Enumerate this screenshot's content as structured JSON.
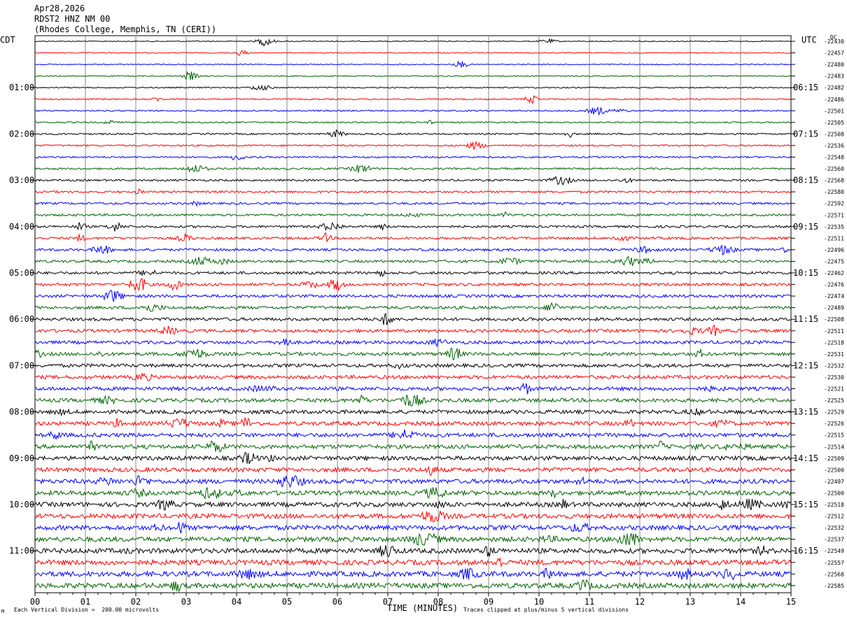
{
  "header": {
    "date": "Apr28,2026",
    "station": "RDST2 HNZ NM 00",
    "location": "(Rhodes College, Memphis, TN (CERI))"
  },
  "left_timezone": "CDT",
  "right_timezone": "UTC",
  "dc_label": "DC",
  "footer": {
    "scale_note": "Each Vertical Division =  200.00 microvolts",
    "xlabel": "TIME (MINUTES)",
    "clip_note": "Traces clipped at plus/minus 5 vertical divisions",
    "corner_mark": "M"
  },
  "chart_data": {
    "type": "line",
    "title": "RDST2 HNZ NM 00",
    "xlabel": "TIME (MINUTES)",
    "xlim": [
      0,
      15
    ],
    "x_ticks": [
      "00",
      "01",
      "02",
      "03",
      "04",
      "05",
      "06",
      "07",
      "08",
      "09",
      "10",
      "11",
      "12",
      "13",
      "14",
      "15"
    ],
    "left_time_labels": [
      "01:00",
      "02:00",
      "03:00",
      "04:00",
      "05:00",
      "06:00",
      "07:00",
      "08:00",
      "09:00",
      "10:00",
      "11:00"
    ],
    "right_time_labels": [
      "06:15",
      "07:15",
      "08:15",
      "09:15",
      "10:15",
      "11:15",
      "12:15",
      "13:15",
      "14:15",
      "15:15",
      "16:15"
    ],
    "trace_colors": [
      "#000000",
      "#ff0000",
      "#0000ff",
      "#006400"
    ],
    "trace_count": 48,
    "dc_offsets": [
      "-22430",
      "-22457",
      "-22480",
      "-22483",
      "-22482",
      "-22486",
      "-22501",
      "-22505",
      "-22508",
      "-22536",
      "-22548",
      "-22560",
      "-22568",
      "-22580",
      "-22592",
      "-22571",
      "-22535",
      "-22511",
      "-22496",
      "-22475",
      "-22462",
      "-22476",
      "-22474",
      "-22489",
      "-22508",
      "-22511",
      "-22518",
      "-22531",
      "-22532",
      "-22530",
      "-22521",
      "-22525",
      "-22529",
      "-22526",
      "-22515",
      "-22514",
      "-22509",
      "-22500",
      "-22497",
      "-22500",
      "-22518",
      "-22512",
      "-22532",
      "-22537",
      "-22549",
      "-22557",
      "-22568",
      "-22585"
    ],
    "grid": "vertical",
    "units": "microvolts"
  }
}
